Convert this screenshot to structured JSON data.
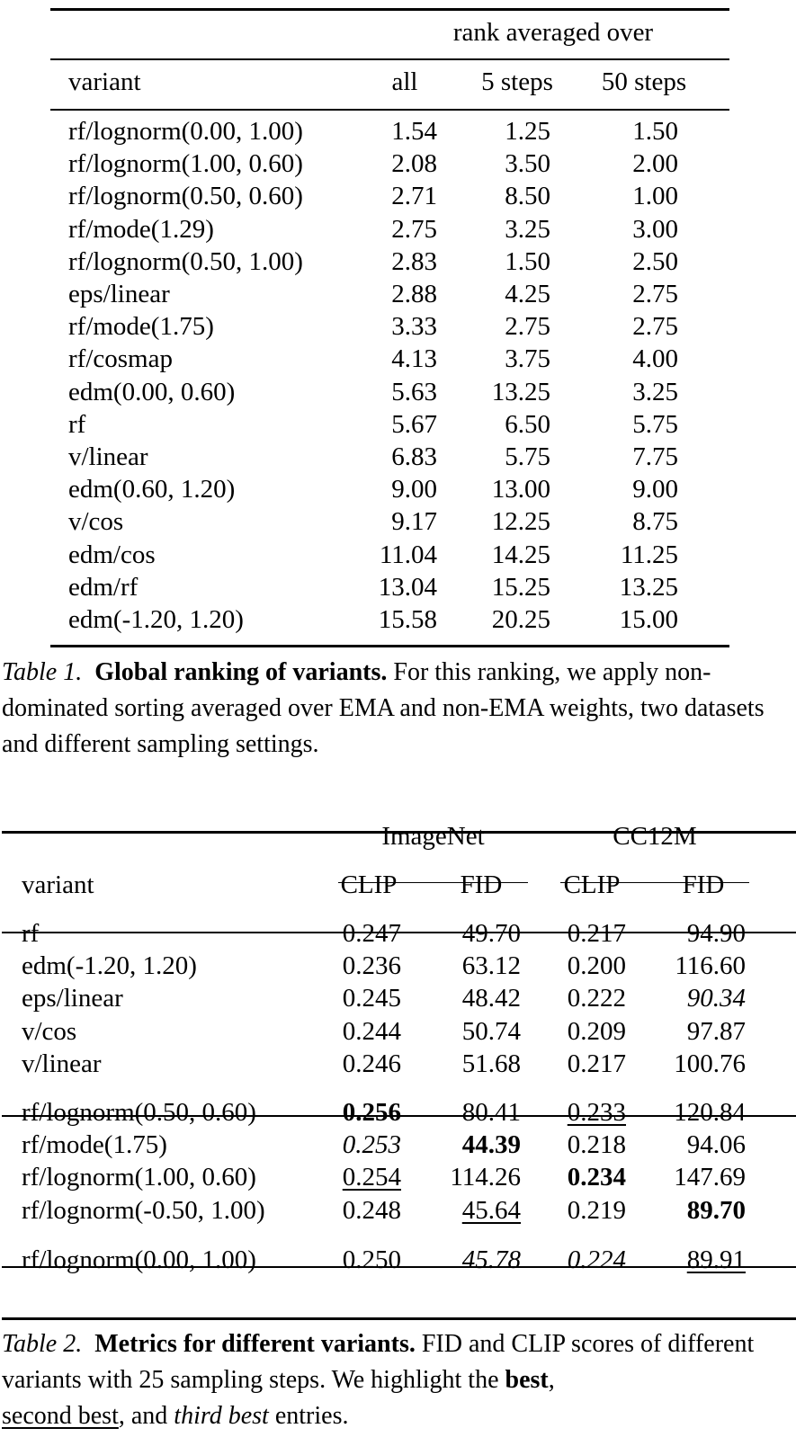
{
  "table1": {
    "group_header": "rank averaged over",
    "columns": [
      "variant",
      "all",
      "5 steps",
      "50 steps"
    ],
    "rows": [
      {
        "variant": "rf/lognorm(0.00, 1.00)",
        "all": "1.54",
        "s5": "1.25",
        "s50": "1.50"
      },
      {
        "variant": "rf/lognorm(1.00, 0.60)",
        "all": "2.08",
        "s5": "3.50",
        "s50": "2.00"
      },
      {
        "variant": "rf/lognorm(0.50, 0.60)",
        "all": "2.71",
        "s5": "8.50",
        "s50": "1.00"
      },
      {
        "variant": "rf/mode(1.29)",
        "all": "2.75",
        "s5": "3.25",
        "s50": "3.00"
      },
      {
        "variant": "rf/lognorm(0.50, 1.00)",
        "all": "2.83",
        "s5": "1.50",
        "s50": "2.50"
      },
      {
        "variant": "eps/linear",
        "all": "2.88",
        "s5": "4.25",
        "s50": "2.75"
      },
      {
        "variant": "rf/mode(1.75)",
        "all": "3.33",
        "s5": "2.75",
        "s50": "2.75"
      },
      {
        "variant": "rf/cosmap",
        "all": "4.13",
        "s5": "3.75",
        "s50": "4.00"
      },
      {
        "variant": "edm(0.00, 0.60)",
        "all": "5.63",
        "s5": "13.25",
        "s50": "3.25"
      },
      {
        "variant": "rf",
        "all": "5.67",
        "s5": "6.50",
        "s50": "5.75"
      },
      {
        "variant": "v/linear",
        "all": "6.83",
        "s5": "5.75",
        "s50": "7.75"
      },
      {
        "variant": "edm(0.60, 1.20)",
        "all": "9.00",
        "s5": "13.00",
        "s50": "9.00"
      },
      {
        "variant": "v/cos",
        "all": "9.17",
        "s5": "12.25",
        "s50": "8.75"
      },
      {
        "variant": "edm/cos",
        "all": "11.04",
        "s5": "14.25",
        "s50": "11.25"
      },
      {
        "variant": "edm/rf",
        "all": "13.04",
        "s5": "15.25",
        "s50": "13.25"
      },
      {
        "variant": "edm(-1.20, 1.20)",
        "all": "15.58",
        "s5": "20.25",
        "s50": "15.00"
      }
    ],
    "caption": {
      "label": "Table 1.",
      "title": "Global ranking of variants.",
      "text": " For this ranking, we apply non-dominated sorting averaged over EMA and non-EMA weights, two datasets and different sampling settings."
    }
  },
  "table2": {
    "groups": [
      "ImageNet",
      "CC12M"
    ],
    "columns": [
      "variant",
      "CLIP",
      "FID",
      "CLIP",
      "FID"
    ],
    "sections": [
      [
        {
          "variant": "rf",
          "in_clip": "0.247",
          "in_fid": "49.70",
          "cc_clip": "0.217",
          "cc_fid": "94.90"
        },
        {
          "variant": "edm(-1.20, 1.20)",
          "in_clip": "0.236",
          "in_fid": "63.12",
          "cc_clip": "0.200",
          "cc_fid": "116.60"
        },
        {
          "variant": "eps/linear",
          "in_clip": "0.245",
          "in_fid": "48.42",
          "cc_clip": "0.222",
          "cc_fid": "90.34",
          "cc_fid_style": "i"
        },
        {
          "variant": "v/cos",
          "in_clip": "0.244",
          "in_fid": "50.74",
          "cc_clip": "0.209",
          "cc_fid": "97.87"
        },
        {
          "variant": "v/linear",
          "in_clip": "0.246",
          "in_fid": "51.68",
          "cc_clip": "0.217",
          "cc_fid": "100.76"
        }
      ],
      [
        {
          "variant": "rf/lognorm(0.50, 0.60)",
          "in_clip": "0.256",
          "in_clip_style": "b",
          "in_fid": "80.41",
          "cc_clip": "0.233",
          "cc_clip_style": "u",
          "cc_fid": "120.84"
        },
        {
          "variant": "rf/mode(1.75)",
          "in_clip": "0.253",
          "in_clip_style": "i",
          "in_fid": "44.39",
          "in_fid_style": "b",
          "cc_clip": "0.218",
          "cc_fid": "94.06"
        },
        {
          "variant": "rf/lognorm(1.00, 0.60)",
          "in_clip": "0.254",
          "in_clip_style": "u",
          "in_fid": "114.26",
          "cc_clip": "0.234",
          "cc_clip_style": "b",
          "cc_fid": "147.69"
        },
        {
          "variant": "rf/lognorm(-0.50, 1.00)",
          "in_clip": "0.248",
          "in_fid": "45.64",
          "in_fid_style": "u",
          "cc_clip": "0.219",
          "cc_fid": "89.70",
          "cc_fid_style": "b"
        }
      ],
      [
        {
          "variant": "rf/lognorm(0.00, 1.00)",
          "in_clip": "0.250",
          "in_fid": "45.78",
          "in_fid_style": "i",
          "cc_clip": "0.224",
          "cc_clip_style": "i",
          "cc_fid": "89.91",
          "cc_fid_style": "u"
        }
      ]
    ],
    "caption": {
      "label": "Table 2.",
      "title": "Metrics for different variants.",
      "text1": " FID and CLIP scores of different variants with 25 sampling steps. We highlight the ",
      "best": "best",
      "text2": ", ",
      "second": "second best",
      "text3": ", and ",
      "third": "third best",
      "text4": " entries."
    }
  }
}
